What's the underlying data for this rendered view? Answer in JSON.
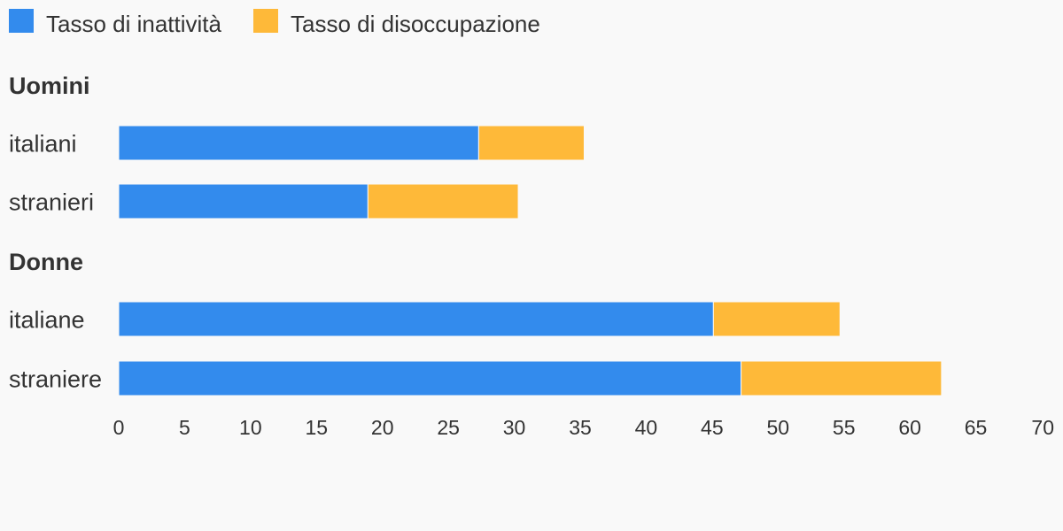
{
  "chart_data": {
    "type": "bar",
    "orientation": "horizontal",
    "stacked": true,
    "legend_position": "top-left",
    "grid": false,
    "xlim": [
      0,
      70
    ],
    "x_ticks": [
      "0",
      "5",
      "10",
      "15",
      "20",
      "25",
      "30",
      "35",
      "40",
      "45",
      "50",
      "55",
      "60",
      "65",
      "70"
    ],
    "series": [
      {
        "name": "Tasso di inattività",
        "color": "#338bed"
      },
      {
        "name": "Tasso di disoccupazione",
        "color": "#feb939"
      }
    ],
    "groups": [
      {
        "label": "Uomini",
        "categories": [
          {
            "label": "italiani",
            "values": [
              27.3,
              8.0
            ]
          },
          {
            "label": "stranieri",
            "values": [
              18.9,
              11.4
            ]
          }
        ]
      },
      {
        "label": "Donne",
        "categories": [
          {
            "label": "italiane",
            "values": [
              45.1,
              9.6
            ]
          },
          {
            "label": "straniere",
            "values": [
              47.2,
              15.2
            ]
          }
        ]
      }
    ]
  }
}
